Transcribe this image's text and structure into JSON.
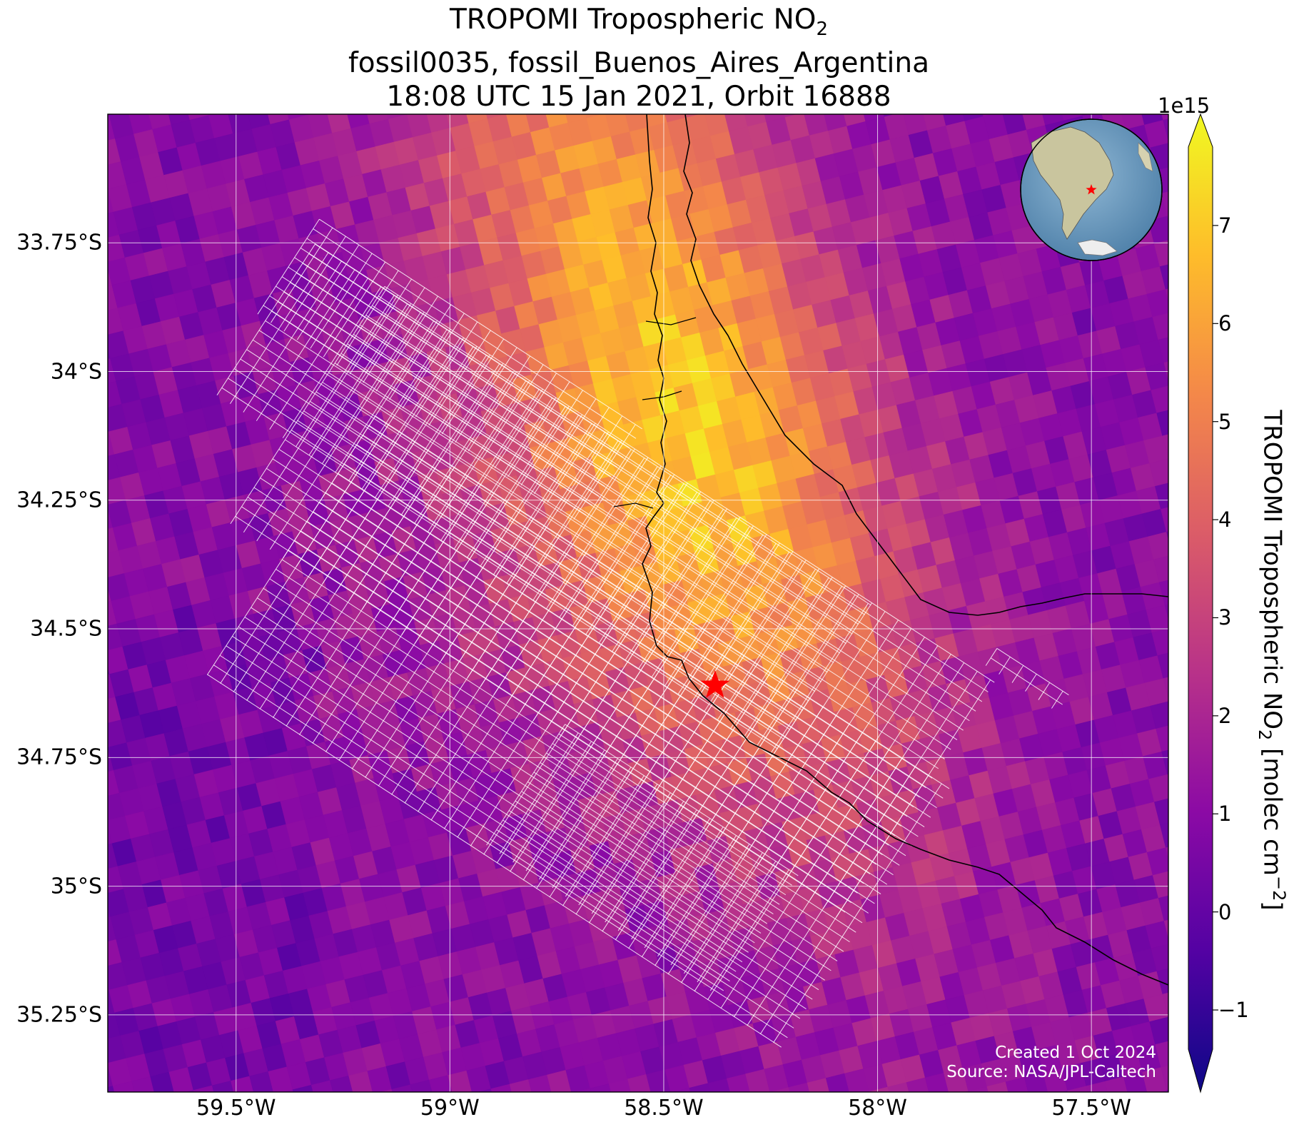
{
  "title": {
    "line1_prefix": "TROPOMI Tropospheric NO",
    "line1_sub": "2",
    "line2": "fossil0035, fossil_Buenos_Aires_Argentina",
    "line3": "18:08 UTC 15 Jan 2021, Orbit 16888"
  },
  "map": {
    "extent": {
      "lon_min": -59.8,
      "lon_max": -57.32,
      "lat_min": -35.4,
      "lat_max": -33.5
    },
    "lat_ticks": [
      {
        "value": -33.75,
        "label": "33.75°S"
      },
      {
        "value": -34.0,
        "label": "34°S"
      },
      {
        "value": -34.25,
        "label": "34.25°S"
      },
      {
        "value": -34.5,
        "label": "34.5°S"
      },
      {
        "value": -34.75,
        "label": "34.75°S"
      },
      {
        "value": -35.0,
        "label": "35°S"
      },
      {
        "value": -35.25,
        "label": "35.25°S"
      }
    ],
    "lon_ticks": [
      {
        "value": -59.5,
        "label": "59.5°W"
      },
      {
        "value": -59.0,
        "label": "59°W"
      },
      {
        "value": -58.5,
        "label": "58.5°W"
      },
      {
        "value": -58.0,
        "label": "58°W"
      },
      {
        "value": -57.5,
        "label": "57.5°W"
      }
    ],
    "gridlines": true,
    "site_marker": {
      "lon": -58.38,
      "lat": -34.61,
      "color": "#ff0000",
      "icon": "star-icon"
    },
    "plume_center_lon_lat": [
      -58.45,
      -34.05
    ],
    "target_swaths": [
      {
        "center": [
          -59.0,
          -34.0
        ],
        "length_deg": 0.9,
        "width_deg": 0.22
      },
      {
        "center": [
          -58.78,
          -34.25
        ],
        "length_deg": 1.55,
        "width_deg": 0.35
      },
      {
        "center": [
          -58.62,
          -34.45
        ],
        "length_deg": 1.7,
        "width_deg": 0.55
      },
      {
        "center": [
          -58.7,
          -34.7
        ],
        "length_deg": 1.6,
        "width_deg": 0.6
      },
      {
        "center": [
          -58.55,
          -34.95
        ],
        "length_deg": 0.65,
        "width_deg": 0.28
      },
      {
        "center": [
          -57.65,
          -34.6
        ],
        "length_deg": 0.2,
        "width_deg": 0.04
      }
    ],
    "inset_globe": {
      "icon": "globe-icon",
      "marker_color": "#ff0000"
    }
  },
  "colorbar": {
    "label_prefix": "TROPOMI Tropospheric NO",
    "label_sub": "2",
    "label_mid": " [molec cm",
    "label_sup": "−2",
    "label_end": "]",
    "exponent": "1e15",
    "min": -1.4,
    "max": 7.8,
    "ticks": [
      {
        "value": -1,
        "label": "−1"
      },
      {
        "value": 0,
        "label": "0"
      },
      {
        "value": 1,
        "label": "1"
      },
      {
        "value": 2,
        "label": "2"
      },
      {
        "value": 3,
        "label": "3"
      },
      {
        "value": 4,
        "label": "4"
      },
      {
        "value": 5,
        "label": "5"
      },
      {
        "value": 6,
        "label": "6"
      },
      {
        "value": 7,
        "label": "7"
      }
    ],
    "colormap": "plasma",
    "stops": [
      "#0d0887",
      "#5302a3",
      "#8b0aa5",
      "#b83289",
      "#db5c68",
      "#f48849",
      "#febd2a",
      "#f0f921"
    ]
  },
  "credit": {
    "created": "Created 1 Oct 2024",
    "source": "Source: NASA/JPL-Caltech"
  }
}
